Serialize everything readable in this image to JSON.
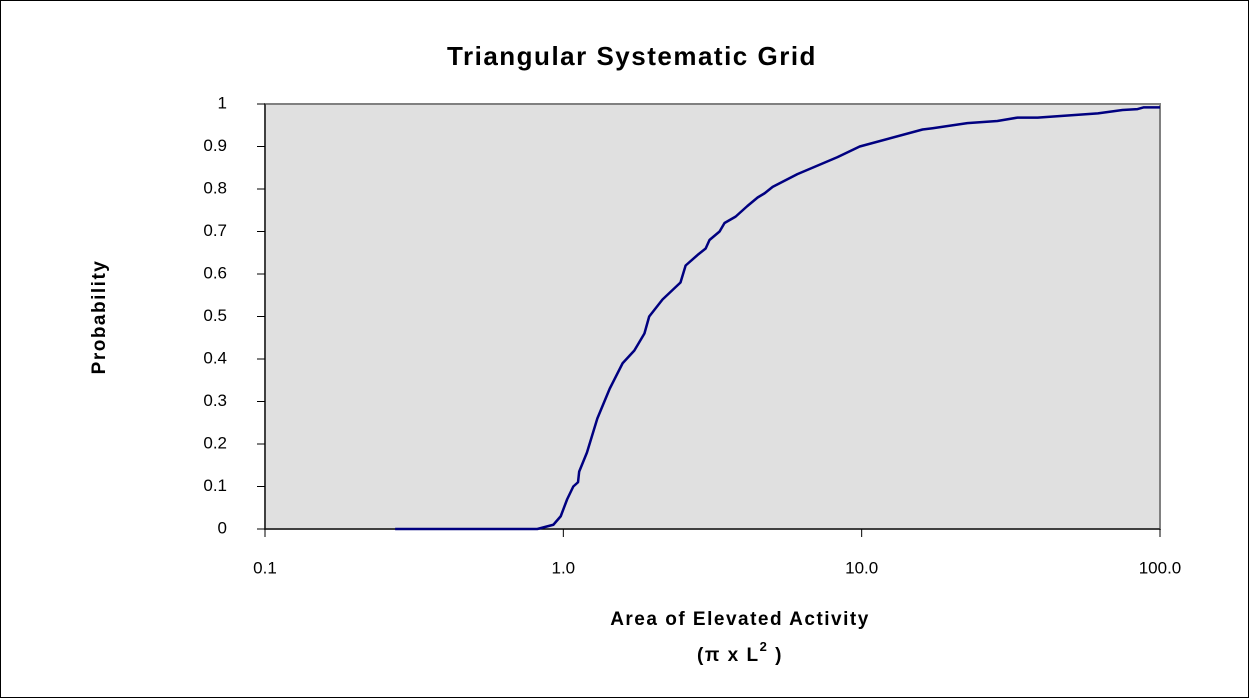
{
  "chart_data": {
    "type": "line",
    "title": "Triangular Systematic Grid",
    "y_label": "Probability",
    "x_label": "Area of Elevated Activity",
    "x_label_unit": {
      "base": "(π x L",
      "sup": "2",
      "end": " )"
    },
    "xscale": "log",
    "xlim": [
      0.1,
      100
    ],
    "xticks": [
      0.1,
      {
        "value": 1,
        "label": "1.0"
      },
      {
        "value": 10,
        "label": "10.0"
      },
      {
        "value": 100,
        "label": "100.0"
      }
    ],
    "ylim": [
      0,
      1
    ],
    "yticks": [
      0,
      0.1,
      0.2,
      0.3,
      0.4,
      0.5,
      0.6,
      0.7,
      0.8,
      0.9,
      1
    ],
    "plot_background": "#e0e0e0",
    "series": [
      {
        "color": "#000080",
        "x": [
          0.273,
          0.818,
          0.926,
          0.98,
          1.03,
          1.08,
          1.12,
          1.13,
          1.2,
          1.3,
          1.43,
          1.58,
          1.73,
          1.87,
          1.94,
          2.15,
          2.47,
          2.57,
          2.82,
          3.0,
          3.09,
          3.34,
          3.47,
          3.78,
          4.14,
          4.48,
          4.73,
          5.03,
          6.09,
          6.84,
          8.3,
          9.85,
          16.0,
          17.3,
          22.6,
          28.5,
          33.3,
          38.9,
          61.9,
          74.9,
          84.1,
          88,
          100
        ],
        "values": [
          0,
          0,
          0.01,
          0.03,
          0.07,
          0.1,
          0.11,
          0.135,
          0.18,
          0.26,
          0.33,
          0.39,
          0.42,
          0.46,
          0.5,
          0.54,
          0.58,
          0.62,
          0.645,
          0.66,
          0.68,
          0.7,
          0.72,
          0.735,
          0.76,
          0.78,
          0.79,
          0.805,
          0.835,
          0.85,
          0.875,
          0.9,
          0.94,
          0.943,
          0.955,
          0.96,
          0.968,
          0.968,
          0.978,
          0.986,
          0.988,
          0.992,
          0.992
        ]
      }
    ]
  }
}
